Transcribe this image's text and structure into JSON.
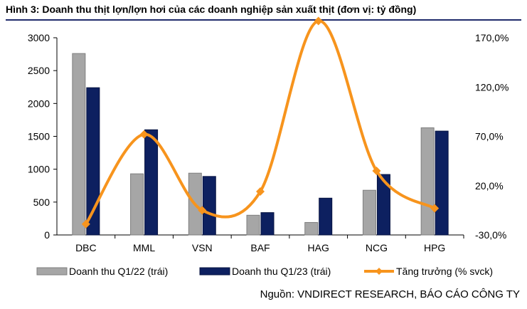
{
  "figure": {
    "title": "Hình 3: Doanh thu thịt lợn/lợn hơi của các doanh nghiệp sản xuất thịt (đơn vị: tỷ đồng)",
    "source": "Nguồn: VNDIRECT RESEARCH, BÁO CÁO CÔNG TY"
  },
  "chart_data": {
    "type": "bar",
    "categories": [
      "DBC",
      "MML",
      "VSN",
      "BAF",
      "HAG",
      "NCG",
      "HPG"
    ],
    "series": [
      {
        "name": "Doanh thu Q1/22 (trái)",
        "kind": "bar",
        "axis": "left",
        "color": "#a6a6a6",
        "values": [
          2760,
          930,
          940,
          300,
          190,
          680,
          1630
        ]
      },
      {
        "name": "Doanh thu Q1/23 (trái)",
        "kind": "bar",
        "axis": "left",
        "color": "#0d2060",
        "values": [
          2240,
          1600,
          890,
          340,
          560,
          920,
          1580
        ]
      },
      {
        "name": "Tăng trưởng (% svck)",
        "kind": "line",
        "axis": "right",
        "color": "#f7941d",
        "values": [
          -19,
          72,
          -5,
          14,
          187,
          35,
          -3
        ]
      }
    ],
    "left_axis": {
      "min": 0,
      "max": 3000,
      "ticks": [
        "0",
        "500",
        "1000",
        "1500",
        "2000",
        "2500",
        "3000"
      ]
    },
    "right_axis": {
      "min": -30,
      "max": 170,
      "ticks": [
        "-30,0%",
        "20,0%",
        "70,0%",
        "120,0%",
        "170,0%"
      ]
    },
    "grid": false,
    "legend": "bottom"
  }
}
